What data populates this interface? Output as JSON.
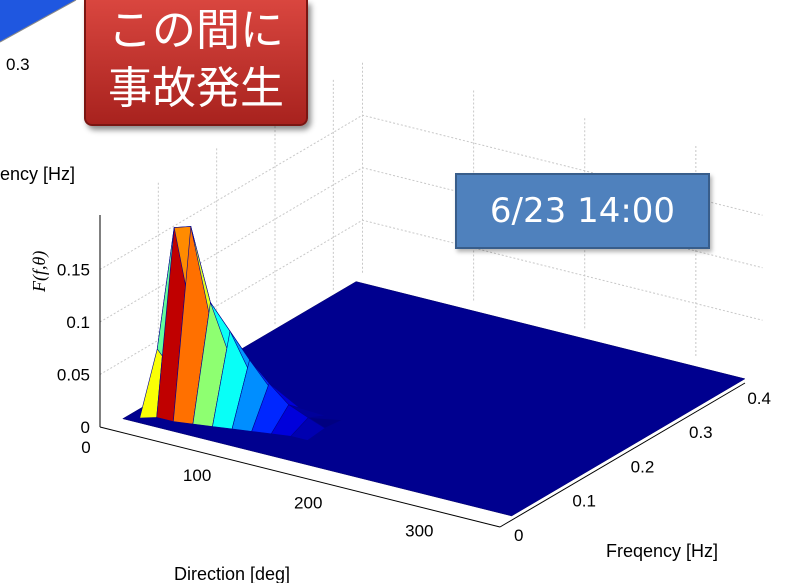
{
  "chart_data": {
    "type": "surface3d",
    "title": "",
    "xlabel": "Direction [deg]",
    "ylabel": "Freqency [Hz]",
    "zlabel": "F(f,θ)",
    "xlim": [
      0,
      360
    ],
    "ylim": [
      0,
      0.45
    ],
    "zlim": [
      0,
      0.2
    ],
    "xticks": [
      "0",
      "100",
      "200",
      "300"
    ],
    "yticks": [
      "0",
      "0.1",
      "0.2",
      "0.3",
      "0.4"
    ],
    "zticks": [
      "0",
      "0.05",
      "0.1",
      "0.15"
    ],
    "grid": true,
    "colormap": "jet",
    "directions": [
      10,
      30,
      50,
      70,
      90,
      110,
      130,
      150,
      170
    ],
    "frequencies": [
      0.05,
      0.1,
      0.15,
      0.2,
      0.25,
      0.3
    ],
    "peak_ridge": [
      {
        "direction": 20,
        "frequency": 0.06,
        "value": 0.06
      },
      {
        "direction": 30,
        "frequency": 0.07,
        "value": 0.175
      },
      {
        "direction": 45,
        "frequency": 0.07,
        "value": 0.18
      },
      {
        "direction": 60,
        "frequency": 0.075,
        "value": 0.11
      },
      {
        "direction": 75,
        "frequency": 0.08,
        "value": 0.085
      },
      {
        "direction": 90,
        "frequency": 0.085,
        "value": 0.06
      },
      {
        "direction": 105,
        "frequency": 0.09,
        "value": 0.04
      },
      {
        "direction": 120,
        "frequency": 0.095,
        "value": 0.022
      },
      {
        "direction": 135,
        "frequency": 0.1,
        "value": 0.012
      },
      {
        "direction": 150,
        "frequency": 0.1,
        "value": 0.006
      }
    ],
    "background_panel": {
      "ylabel_partial": "ency [Hz]",
      "tick_partial": "0.3"
    }
  },
  "annotations": {
    "red_callout": "この間に\n事故発生",
    "blue_callout": "6/23 14:00"
  },
  "colors": {
    "floor": "#00008f",
    "peak": "#800000",
    "callout_red": "#c0302b",
    "callout_blue": "#4f81bd"
  }
}
